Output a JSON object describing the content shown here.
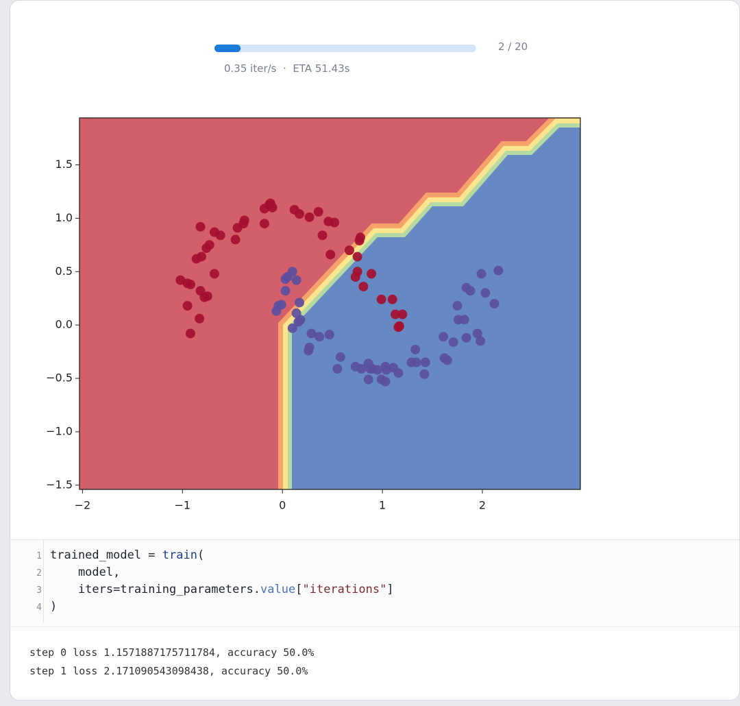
{
  "progress": {
    "value": 2,
    "max": 20,
    "label": "2 / 20",
    "status": "0.35 iter/s  ·  ETA 51.43s"
  },
  "chart_data": {
    "type": "scatter",
    "xlim": [
      -2.03,
      2.98
    ],
    "ylim": [
      -1.54,
      1.94
    ],
    "xticks": [
      {
        "value": -2,
        "label": "−2"
      },
      {
        "value": -1,
        "label": "−1"
      },
      0,
      1,
      2
    ],
    "yticks": [
      {
        "value": -1.5,
        "label": "−1.5"
      },
      {
        "value": -1,
        "label": "−1.0"
      },
      {
        "value": -0.5,
        "label": "−0.5"
      },
      {
        "value": 0,
        "label": "0.0"
      },
      0.5,
      {
        "value": 1,
        "label": "1.0"
      },
      1.5
    ],
    "series": [
      {
        "color": "#a50f30",
        "x": [
          -1.02,
          -0.95,
          -0.92,
          -0.95,
          -0.82,
          -0.78,
          -0.75,
          -0.83,
          -0.92,
          -0.86,
          -0.81,
          -0.76,
          -0.73,
          -0.68,
          -0.82,
          -0.68,
          -0.62,
          -0.47,
          -0.45,
          -0.39,
          -0.38,
          -0.18,
          -0.18,
          -0.13,
          -0.1,
          -0.12,
          0.12,
          0.17,
          0.27,
          0.36,
          0.4,
          0.46,
          0.52,
          0.48,
          0.67,
          0.75,
          0.78,
          0.77,
          0.73,
          0.75,
          0.81,
          0.89,
          0.99,
          1.1,
          1.13,
          1.2,
          1.16,
          1.17
        ],
        "values": [
          0.42,
          0.39,
          0.38,
          0.18,
          0.32,
          0.26,
          0.27,
          0.06,
          -0.08,
          0.62,
          0.64,
          0.72,
          0.75,
          0.48,
          0.92,
          0.87,
          0.84,
          0.8,
          0.91,
          0.95,
          0.98,
          0.95,
          1.09,
          1.13,
          1.1,
          1.14,
          1.08,
          1.04,
          1.01,
          1.06,
          0.84,
          0.97,
          0.96,
          0.66,
          0.7,
          0.64,
          0.82,
          0.79,
          0.45,
          0.5,
          0.36,
          0.48,
          0.24,
          0.24,
          0.1,
          0.1,
          -0.02,
          -0.01
        ]
      },
      {
        "color": "#5b4fa0",
        "x": [
          -0.06,
          -0.04,
          -0.01,
          0.03,
          0.03,
          0.1,
          0.14,
          0.05,
          0.17,
          0.14,
          0.18,
          0.1,
          0.16,
          0.29,
          0.37,
          0.47,
          0.27,
          0.26,
          0.58,
          0.55,
          0.73,
          0.79,
          0.86,
          0.88,
          0.86,
          0.95,
          0.99,
          1.03,
          1.03,
          1.11,
          1.16,
          1.29,
          1.33,
          1.34,
          1.43,
          1.42,
          1.61,
          1.62,
          1.65,
          1.71,
          1.76,
          1.75,
          1.82,
          1.84,
          1.88,
          1.84,
          1.95,
          1.99,
          2.03,
          2.12,
          2.16,
          1.98,
          0.9,
          1.04
        ],
        "values": [
          0.13,
          0.18,
          0.19,
          0.32,
          0.43,
          0.5,
          0.42,
          0.45,
          0.21,
          0.11,
          0.05,
          -0.03,
          0.03,
          -0.08,
          -0.11,
          -0.09,
          -0.21,
          -0.24,
          -0.3,
          -0.41,
          -0.39,
          -0.41,
          -0.36,
          -0.41,
          -0.51,
          -0.42,
          -0.51,
          -0.53,
          -0.39,
          -0.4,
          -0.45,
          -0.35,
          -0.23,
          -0.35,
          -0.35,
          -0.46,
          -0.11,
          -0.31,
          -0.33,
          -0.16,
          0.05,
          0.18,
          0.05,
          0.35,
          0.32,
          -0.12,
          -0.08,
          0.48,
          0.3,
          0.2,
          0.51,
          -0.15,
          -0.41,
          -0.42
        ]
      }
    ]
  },
  "code": {
    "line_numbers": [
      "1",
      "2",
      "3",
      "4"
    ],
    "lines": [
      [
        {
          "text": "trained_model = ",
          "kind": "plain"
        },
        {
          "text": "train",
          "kind": "fn"
        },
        {
          "text": "(",
          "kind": "plain"
        }
      ],
      [
        {
          "text": "    model,",
          "kind": "plain"
        }
      ],
      [
        {
          "text": "    iters=training_parameters.",
          "kind": "plain"
        },
        {
          "text": "value",
          "kind": "attr"
        },
        {
          "text": "[",
          "kind": "plain"
        },
        {
          "text": "\"iterations\"",
          "kind": "str"
        },
        {
          "text": "]",
          "kind": "plain"
        }
      ],
      [
        {
          "text": ")",
          "kind": "plain"
        }
      ]
    ]
  },
  "output": [
    "step 0 loss 1.1571887175711784, accuracy 50.0%",
    "step 1 loss 2.171090543098438, accuracy 50.0%"
  ]
}
